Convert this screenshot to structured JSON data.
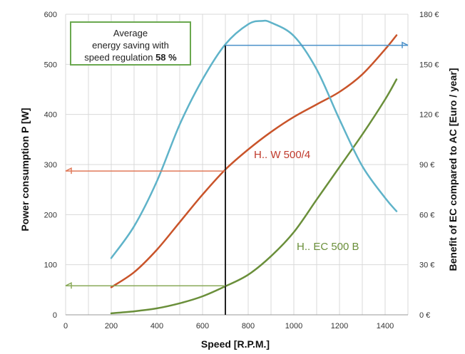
{
  "chart_data": {
    "type": "line",
    "xlabel": "Speed [R.P.M.]",
    "ylabel": "Power consumption P [W]",
    "y2label": "Benefit of EC compared to AC [Euro / year]",
    "xlim": [
      0,
      1500
    ],
    "ylim": [
      0,
      600
    ],
    "y2lim": [
      0,
      180
    ],
    "xticks": [
      0,
      200,
      400,
      600,
      800,
      1000,
      1200,
      1400
    ],
    "yticks": [
      0,
      100,
      200,
      300,
      400,
      500,
      600
    ],
    "y2ticks": [
      "0 €",
      "30 €",
      "60 €",
      "90 €",
      "120 €",
      "150 €",
      "180 €"
    ],
    "grid": true,
    "note": {
      "line1": "Average",
      "line2": "energy saving with",
      "line3_prefix": "speed regulation",
      "line3_value": "58 %"
    },
    "series": [
      {
        "name": "H.. W 500/4",
        "color": "#c9542a",
        "axis": "left",
        "x": [
          200,
          300,
          400,
          500,
          600,
          700,
          800,
          900,
          1000,
          1100,
          1200,
          1300,
          1400,
          1450
        ],
        "y": [
          55,
          85,
          130,
          185,
          240,
          290,
          330,
          365,
          395,
          420,
          445,
          480,
          530,
          558
        ]
      },
      {
        "name": "H.. EC 500 B",
        "color": "#6a8f3a",
        "axis": "left",
        "x": [
          200,
          300,
          400,
          500,
          600,
          700,
          800,
          900,
          1000,
          1100,
          1200,
          1300,
          1400,
          1450
        ],
        "y": [
          3,
          7,
          13,
          23,
          37,
          57,
          80,
          117,
          165,
          230,
          295,
          360,
          430,
          470
        ]
      },
      {
        "name": "",
        "color": "#5fb3c9",
        "axis": "right",
        "x": [
          200,
          300,
          400,
          500,
          600,
          700,
          800,
          860,
          900,
          1000,
          1100,
          1200,
          1300,
          1400,
          1450
        ],
        "y": [
          34,
          53,
          80,
          114,
          141,
          162,
          174,
          176,
          175,
          167,
          147,
          117,
          89,
          70,
          62
        ]
      }
    ],
    "annotations": {
      "marker_x": 700,
      "arrow_top_value": 538,
      "arrow_ac_value": 287,
      "arrow_ec_value": 58
    }
  }
}
